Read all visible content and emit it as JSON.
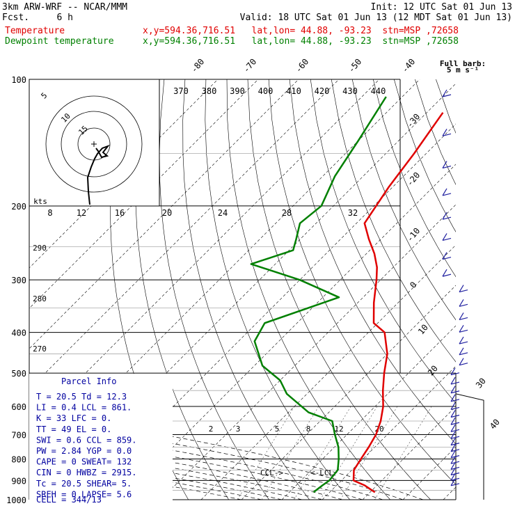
{
  "header": {
    "title_left": "3km ARW-WRF -- NCAR/MMM",
    "init": "Init: 12 UTC Sat 01 Jun 13",
    "fcst_label": "Fcst.",
    "fcst_value": "6 h",
    "valid": "Valid: 18 UTC Sat 01 Jun 13 (12 MDT Sat 01 Jun 13)",
    "temp_label": "Temperature",
    "temp_info": "x,y=594.36,716.51   lat,lon= 44.88, -93.23  stn=MSP ,72658",
    "dew_label": "Dewpoint temperature",
    "dew_info": "x,y=594.36,716.51   lat,lon= 44.88, -93.23  stn=MSP ,72658",
    "barb_key_title": "Full barb:",
    "barb_key_value": "5 m s⁻¹"
  },
  "chart_data": {
    "type": "line",
    "pressure_ticks": [
      100,
      200,
      300,
      400,
      500,
      600,
      700,
      800,
      900,
      1000
    ],
    "isotherm_labels": [
      "-80",
      "-70",
      "-60",
      "-50",
      "-40",
      "-30",
      "-20",
      "-10",
      "0",
      "10",
      "20",
      "30",
      "40"
    ],
    "theta_labels": [
      "370",
      "380",
      "390",
      "400",
      "410",
      "420",
      "430",
      "440"
    ],
    "theta_left_labels": [
      "290",
      "280",
      "270"
    ],
    "mixing_ratio_labels": [
      "2",
      "3",
      "5",
      "8",
      "12",
      "20"
    ],
    "hodograph": {
      "ring_labels": [
        "5",
        "10",
        "15"
      ],
      "units": "kts",
      "speed_ticks": [
        "8",
        "12",
        "16",
        "20",
        "24",
        "28",
        "32"
      ]
    },
    "series": [
      {
        "name": "Temperature",
        "color": "#e00000",
        "x": [
          21.2,
          17,
          13,
          10.5,
          9.5,
          8.5,
          7.2,
          5,
          2,
          -2,
          -6,
          -10,
          -16,
          -21,
          -26,
          -31,
          -34,
          -38,
          -43,
          -48,
          -51,
          -53,
          -56
        ],
        "y": [
          960,
          925,
          900,
          850,
          800,
          750,
          700,
          650,
          600,
          550,
          500,
          450,
          400,
          380,
          340,
          300,
          280,
          260,
          240,
          220,
          180,
          150,
          120
        ]
      },
      {
        "name": "Dewpoint temperature",
        "color": "#008000",
        "x": [
          6,
          6.5,
          7,
          6.5,
          4,
          1,
          -3,
          -7,
          -15,
          -25,
          -30,
          -38,
          -46,
          -48,
          -36,
          -50,
          -66,
          -59,
          -61,
          -64,
          -63,
          -67,
          -70,
          -74
        ],
        "y": [
          960,
          925,
          900,
          850,
          800,
          750,
          700,
          650,
          620,
          560,
          520,
          480,
          420,
          380,
          330,
          300,
          275,
          255,
          240,
          220,
          200,
          170,
          140,
          110
        ]
      }
    ],
    "annotations": [
      "CCL->",
      "<-LCL"
    ]
  },
  "parcel_info": {
    "title": "Parcel Info",
    "rows": [
      {
        "l1": "T",
        "v1": "20.5",
        "l2": "Td",
        "v2": "12.3"
      },
      {
        "l1": "LI",
        "v1": "0.4",
        "l2": "LCL",
        "v2": "861."
      },
      {
        "l1": "K",
        "v1": "33",
        "l2": "LFC",
        "v2": "0."
      },
      {
        "l1": "TT",
        "v1": "49",
        "l2": "EL",
        "v2": "0."
      },
      {
        "l1": "SWI",
        "v1": "0.6",
        "l2": "CCL",
        "v2": "859."
      },
      {
        "l1": "PW",
        "v1": "2.84",
        "l2": "YGP",
        "v2": "0.0"
      },
      {
        "l1": "CAPE",
        "v1": "0",
        "l2": "SWEAT",
        "v2": "132"
      },
      {
        "l1": "CIN",
        "v1": "0",
        "l2": "HWBZ",
        "v2": "2915."
      },
      {
        "l1": "Tc",
        "v1": "20.5",
        "l2": "SHEAR",
        "v2": "5."
      },
      {
        "l1": "SREH",
        "v1": "0",
        "l2": "LAPSE",
        "v2": "5.6"
      }
    ],
    "cell": "CELL = 344/13"
  }
}
